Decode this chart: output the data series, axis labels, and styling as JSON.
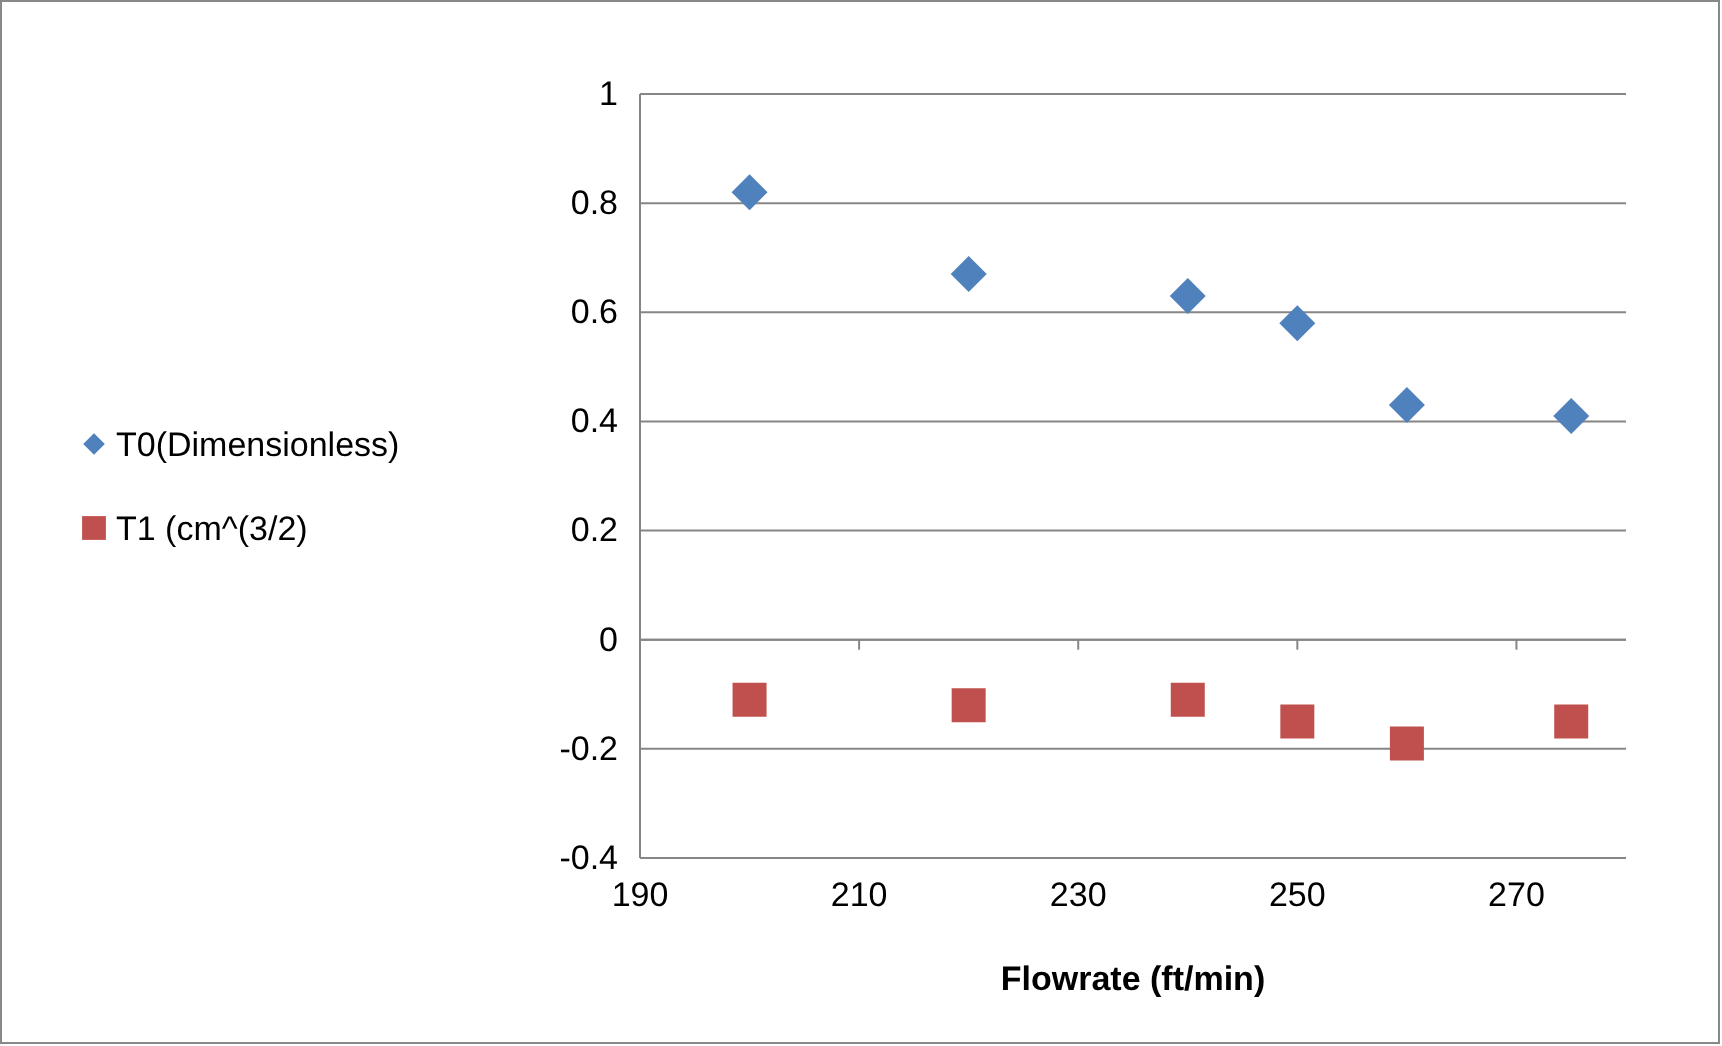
{
  "chart_data": {
    "type": "scatter",
    "xlabel": "Flowrate (ft/min)",
    "x": [
      200,
      220,
      240,
      250,
      260,
      275
    ],
    "series": [
      {
        "name": "T0(Dimensionless)",
        "color": "#4f81bd",
        "marker": "diamond",
        "values": [
          0.82,
          0.67,
          0.63,
          0.58,
          0.43,
          0.41
        ]
      },
      {
        "name": "T1 (cm^(3/2)",
        "color": "#c0504d",
        "marker": "square",
        "values": [
          -0.11,
          -0.12,
          -0.11,
          -0.15,
          -0.19,
          -0.15
        ]
      }
    ],
    "xlim": [
      190,
      280
    ],
    "xticks": [
      190,
      210,
      230,
      250,
      270
    ],
    "ylim": [
      -0.4,
      1
    ],
    "yticks": [
      -0.4,
      -0.2,
      0,
      0.2,
      0.4,
      0.6,
      0.8,
      1
    ],
    "grid": "y",
    "legend": "left"
  }
}
